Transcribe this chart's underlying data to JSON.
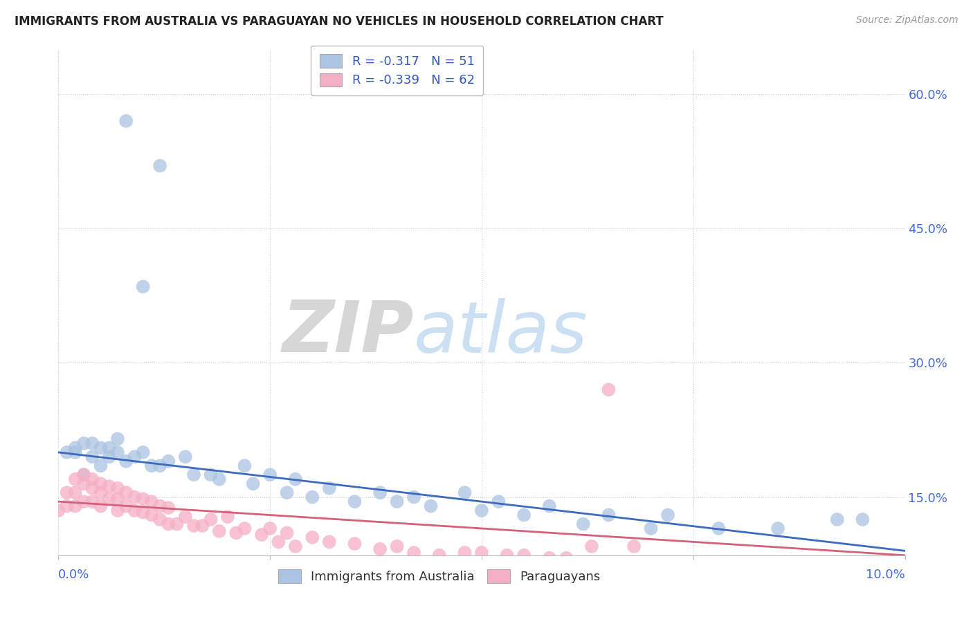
{
  "title": "IMMIGRANTS FROM AUSTRALIA VS PARAGUAYAN NO VEHICLES IN HOUSEHOLD CORRELATION CHART",
  "source": "Source: ZipAtlas.com",
  "xlim": [
    0.0,
    0.1
  ],
  "ylim": [
    0.085,
    0.65
  ],
  "series1_name": "Immigrants from Australia",
  "series1_color": "#aac4e2",
  "series1_line_color": "#3b6abf",
  "series1_R": -0.317,
  "series1_N": 51,
  "series2_name": "Paraguayans",
  "series2_color": "#f5afc4",
  "series2_line_color": "#d4607a",
  "series2_R": -0.339,
  "series2_N": 62,
  "legend_R_color": "#3355cc",
  "watermark_zip": "ZIP",
  "watermark_atlas": "atlas",
  "background_color": "#ffffff",
  "grid_color": "#cccccc",
  "blue_scatter_x": [
    0.008,
    0.012,
    0.01,
    0.002,
    0.003,
    0.005,
    0.007,
    0.007,
    0.003,
    0.005,
    0.006,
    0.004,
    0.006,
    0.009,
    0.01,
    0.012,
    0.015,
    0.018,
    0.022,
    0.025,
    0.028,
    0.032,
    0.038,
    0.042,
    0.048,
    0.052,
    0.058,
    0.065,
    0.072,
    0.078,
    0.085,
    0.092,
    0.001,
    0.002,
    0.004,
    0.008,
    0.011,
    0.013,
    0.016,
    0.019,
    0.023,
    0.027,
    0.03,
    0.035,
    0.04,
    0.044,
    0.05,
    0.055,
    0.062,
    0.07,
    0.095
  ],
  "blue_scatter_y": [
    0.57,
    0.52,
    0.385,
    0.2,
    0.175,
    0.185,
    0.2,
    0.215,
    0.21,
    0.205,
    0.195,
    0.21,
    0.205,
    0.195,
    0.2,
    0.185,
    0.195,
    0.175,
    0.185,
    0.175,
    0.17,
    0.16,
    0.155,
    0.15,
    0.155,
    0.145,
    0.14,
    0.13,
    0.13,
    0.115,
    0.115,
    0.125,
    0.2,
    0.205,
    0.195,
    0.19,
    0.185,
    0.19,
    0.175,
    0.17,
    0.165,
    0.155,
    0.15,
    0.145,
    0.145,
    0.14,
    0.135,
    0.13,
    0.12,
    0.115,
    0.125
  ],
  "pink_scatter_x": [
    0.0,
    0.001,
    0.001,
    0.002,
    0.002,
    0.002,
    0.003,
    0.003,
    0.003,
    0.004,
    0.004,
    0.004,
    0.005,
    0.005,
    0.005,
    0.006,
    0.006,
    0.007,
    0.007,
    0.007,
    0.008,
    0.008,
    0.009,
    0.009,
    0.01,
    0.01,
    0.011,
    0.011,
    0.012,
    0.012,
    0.013,
    0.013,
    0.014,
    0.015,
    0.016,
    0.017,
    0.018,
    0.019,
    0.02,
    0.021,
    0.022,
    0.024,
    0.025,
    0.026,
    0.027,
    0.028,
    0.03,
    0.032,
    0.035,
    0.038,
    0.04,
    0.042,
    0.045,
    0.048,
    0.05,
    0.053,
    0.055,
    0.058,
    0.06,
    0.063,
    0.065,
    0.068
  ],
  "pink_scatter_y": [
    0.135,
    0.155,
    0.14,
    0.17,
    0.155,
    0.14,
    0.175,
    0.165,
    0.145,
    0.17,
    0.16,
    0.145,
    0.165,
    0.155,
    0.14,
    0.162,
    0.148,
    0.16,
    0.148,
    0.135,
    0.155,
    0.14,
    0.15,
    0.135,
    0.148,
    0.133,
    0.145,
    0.13,
    0.14,
    0.125,
    0.138,
    0.12,
    0.12,
    0.128,
    0.118,
    0.118,
    0.125,
    0.112,
    0.128,
    0.11,
    0.115,
    0.108,
    0.115,
    0.1,
    0.11,
    0.095,
    0.105,
    0.1,
    0.098,
    0.092,
    0.095,
    0.088,
    0.085,
    0.088,
    0.088,
    0.085,
    0.085,
    0.082,
    0.082,
    0.095,
    0.27,
    0.095
  ]
}
